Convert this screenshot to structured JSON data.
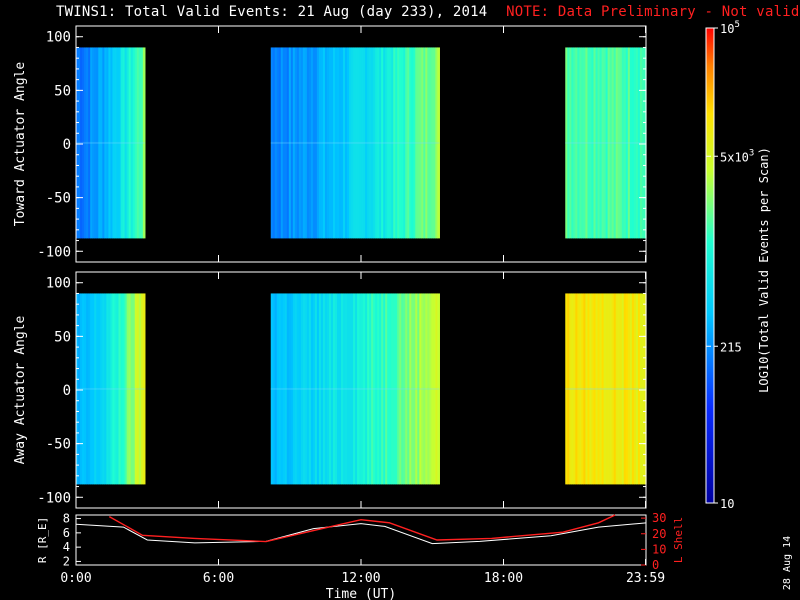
{
  "header": {
    "title": "TWINS1: Total Valid Events: 21 Aug (day 233), 2014",
    "note": "NOTE: Data Preliminary - Not validated"
  },
  "stamp": "28 Aug 14",
  "colors": {
    "background": "#000000",
    "note": "#ff2020",
    "r_line": "#ffffff",
    "lshell_line": "#ff2020"
  },
  "chart_data": [
    {
      "type": "heatmap",
      "ylabel": "Toward Actuator Angle",
      "ylim": [
        -110,
        110
      ],
      "yticks": [
        100,
        50,
        0,
        -50,
        -100
      ],
      "xlim": [
        0,
        24
      ],
      "angle_range": [
        -88,
        90
      ],
      "blocks": [
        {
          "x_start": 0.0,
          "x_end": 2.9,
          "level_start": 0.3,
          "level_end": 0.62
        },
        {
          "x_start": 8.2,
          "x_end": 15.3,
          "level_start": 0.32,
          "level_end": 0.66
        },
        {
          "x_start": 20.6,
          "x_end": 24.0,
          "level_start": 0.6,
          "level_end": 0.58
        }
      ]
    },
    {
      "type": "heatmap",
      "ylabel": "Away Actuator Angle",
      "ylim": [
        -110,
        110
      ],
      "yticks": [
        100,
        50,
        0,
        -50,
        -100
      ],
      "xlim": [
        0,
        24
      ],
      "angle_range": [
        -88,
        90
      ],
      "blocks": [
        {
          "x_start": 0.0,
          "x_end": 2.9,
          "level_start": 0.36,
          "level_end": 0.75
        },
        {
          "x_start": 8.2,
          "x_end": 15.3,
          "level_start": 0.4,
          "level_end": 0.72
        },
        {
          "x_start": 20.6,
          "x_end": 24.0,
          "level_start": 0.8,
          "level_end": 0.78
        }
      ]
    },
    {
      "type": "line",
      "ylabel_left": "R [R_E]",
      "ylabel_right": "L Shell",
      "xlabel": "Time (UT)",
      "xlim": [
        0,
        24
      ],
      "x_tick_labels": [
        "0:00",
        "6:00",
        "12:00",
        "18:00",
        "23:59"
      ],
      "x_tick_values": [
        0,
        6,
        12,
        18,
        23.98
      ],
      "left_ylim": [
        1.5,
        8.5
      ],
      "left_yticks": [
        8,
        6,
        4,
        2
      ],
      "right_ylim": [
        0,
        32
      ],
      "right_yticks": [
        30,
        20,
        10,
        0
      ],
      "series": [
        {
          "axis": "left",
          "x": [
            0,
            2,
            3,
            5,
            8,
            10,
            12,
            13,
            15,
            17,
            20,
            22,
            24
          ],
          "y": [
            7.2,
            6.8,
            5.0,
            4.6,
            4.8,
            6.6,
            7.3,
            6.9,
            4.5,
            4.8,
            5.6,
            6.8,
            7.4
          ]
        },
        {
          "axis": "right",
          "x": [
            1.4,
            2.8,
            5.0,
            8.0,
            10.0,
            12.0,
            13.2,
            15.2,
            17.5,
            20.5,
            22.0,
            22.7
          ],
          "y": [
            31,
            19,
            17,
            15,
            22,
            29,
            27,
            16,
            17,
            21,
            27,
            32
          ]
        }
      ]
    }
  ],
  "colorbar": {
    "label": "LOG10(Total Valid Events per Scan)",
    "ticks": [
      {
        "base": "10",
        "exp": "5",
        "level": 1.0
      },
      {
        "base": "5x10",
        "exp": "3",
        "level": 0.73
      },
      {
        "base": "215",
        "exp": "",
        "level": 0.33
      },
      {
        "base": "10",
        "exp": "",
        "level": 0.0
      }
    ]
  }
}
